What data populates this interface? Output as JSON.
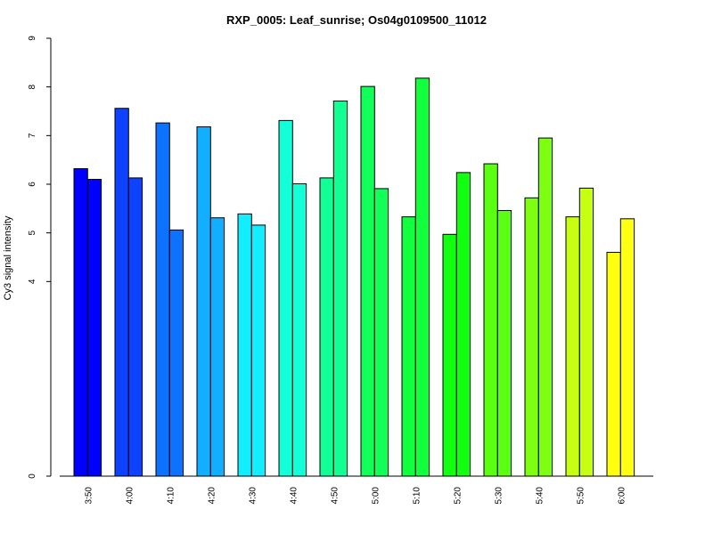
{
  "chart_data": {
    "type": "bar",
    "title": "RXP_0005: Leaf_sunrise; Os04g0109500_11012",
    "xlabel": "",
    "ylabel": "Cy3 signal intensity",
    "y_ticks": [
      "0",
      "4",
      "5",
      "6",
      "7",
      "8",
      "9"
    ],
    "ylim": [
      0,
      9
    ],
    "grid": false,
    "legend": "none",
    "categories": [
      "3:50",
      "4:00",
      "4:10",
      "4:20",
      "4:30",
      "4:40",
      "4:50",
      "5:00",
      "5:10",
      "5:20",
      "5:30",
      "5:40",
      "5:50",
      "6:00"
    ],
    "category_colors": [
      "#0000FF",
      "#0D42FF",
      "#0D72FF",
      "#12AEFF",
      "#13EEFF",
      "#12FFD8",
      "#12FF96",
      "#12FF5A",
      "#12FF3D",
      "#12FF12",
      "#5AFF12",
      "#7EFF12",
      "#C6FF12",
      "#FFFF12"
    ],
    "series": [
      {
        "values": [
          6.32,
          7.56,
          7.26,
          7.18,
          5.39,
          7.31,
          6.13,
          8.01,
          5.33,
          4.97,
          6.42,
          5.72,
          5.33,
          4.6
        ]
      },
      {
        "values": [
          6.1,
          6.13,
          5.06,
          5.31,
          5.16,
          6.01,
          7.71,
          5.91,
          8.18,
          6.24,
          5.46,
          6.95,
          5.92,
          5.29
        ]
      }
    ]
  }
}
